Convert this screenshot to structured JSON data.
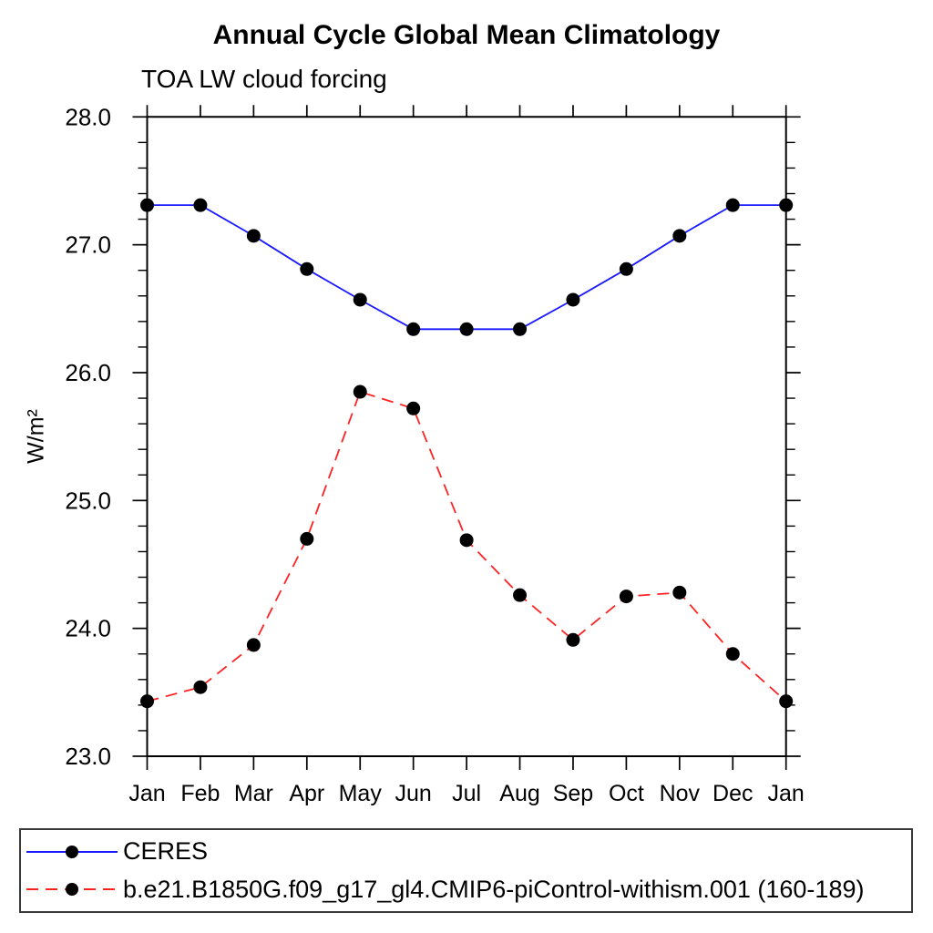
{
  "page": {
    "background": "#ffffff",
    "axis_color": "#000000",
    "legend_border_color": "#3a3a3a"
  },
  "chart_data": {
    "type": "line",
    "title": "Annual Cycle Global Mean Climatology",
    "subtitle": "TOA LW cloud forcing",
    "xlabel": "",
    "ylabel": "W/m²",
    "categories": [
      "Jan",
      "Feb",
      "Mar",
      "Apr",
      "May",
      "Jun",
      "Jul",
      "Aug",
      "Sep",
      "Oct",
      "Nov",
      "Dec",
      "Jan"
    ],
    "ylim": [
      23.0,
      28.0
    ],
    "ytick_interval": 1.0,
    "yminor_interval": 0.2,
    "ytick_labels": [
      "23.0",
      "24.0",
      "25.0",
      "26.0",
      "27.0",
      "28.0"
    ],
    "grid": false,
    "legend_position": "bottom",
    "series": [
      {
        "name": "CERES",
        "color": "#1a1aff",
        "line_style": "solid",
        "marker": "circle",
        "marker_color": "#000000",
        "values": [
          27.31,
          27.31,
          27.07,
          26.81,
          26.57,
          26.34,
          26.34,
          26.34,
          26.57,
          26.81,
          27.07,
          27.31,
          27.31
        ]
      },
      {
        "name": "b.e21.B1850G.f09_g17_gl4.CMIP6-piControl-withism.001 (160-189)",
        "color": "#ff2222",
        "line_style": "dashed",
        "marker": "circle",
        "marker_color": "#000000",
        "values": [
          23.43,
          23.54,
          23.87,
          24.7,
          25.85,
          25.72,
          24.69,
          24.26,
          23.91,
          24.25,
          24.28,
          23.8,
          23.43
        ]
      }
    ]
  }
}
